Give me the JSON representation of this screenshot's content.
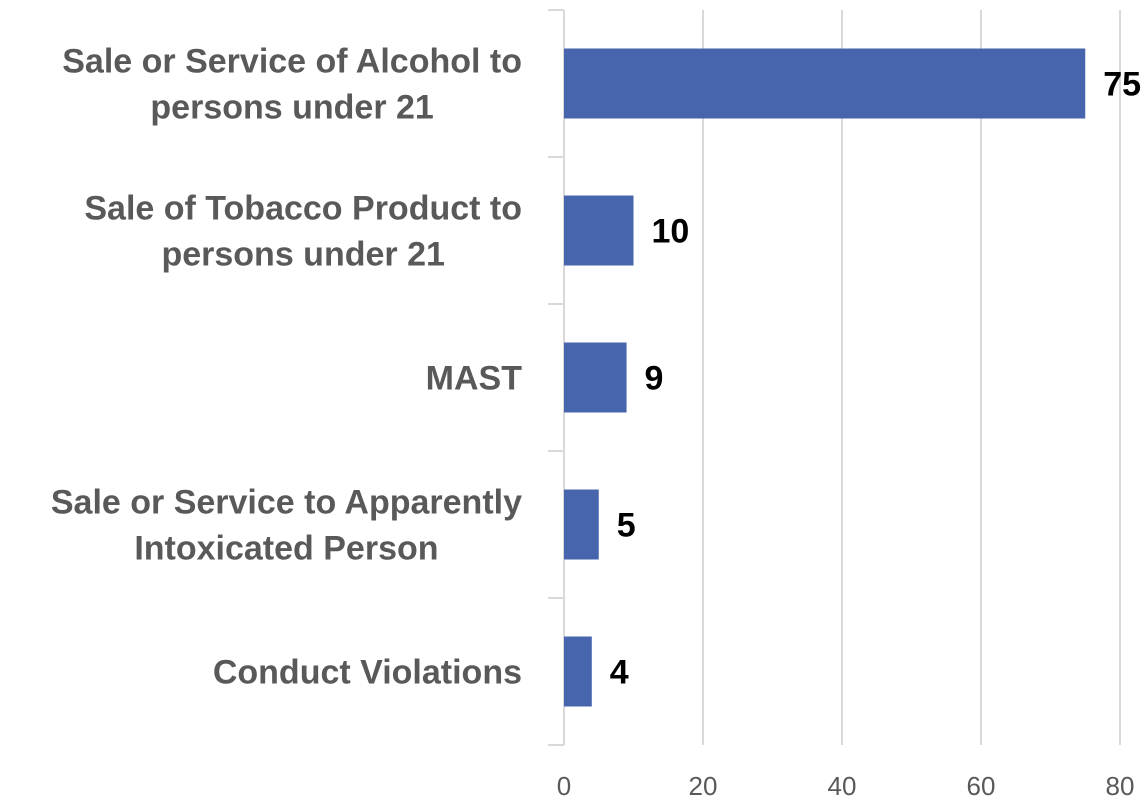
{
  "chart_data": {
    "type": "bar",
    "orientation": "horizontal",
    "title": "",
    "xlabel": "",
    "ylabel": "",
    "categories": [
      [
        "Sale or Service of Alcohol to",
        "persons under 21"
      ],
      [
        "Sale of Tobacco Product to",
        "persons under 21"
      ],
      [
        "MAST"
      ],
      [
        "Sale or Service to Apparently",
        "Intoxicated Person"
      ],
      [
        "Conduct Violations"
      ]
    ],
    "values": [
      75,
      10,
      9,
      5,
      4
    ],
    "data_labels": [
      "75",
      "10",
      "9",
      "5",
      "4"
    ],
    "xlim": [
      0,
      80
    ],
    "xticks": [
      0,
      20,
      40,
      60,
      80
    ],
    "xtick_labels": [
      "0",
      "20",
      "40",
      "60",
      "80"
    ],
    "grid": "vertical",
    "legend": "none",
    "bar_color": "#4765AD",
    "gridline_color": "#D9D9D9"
  }
}
